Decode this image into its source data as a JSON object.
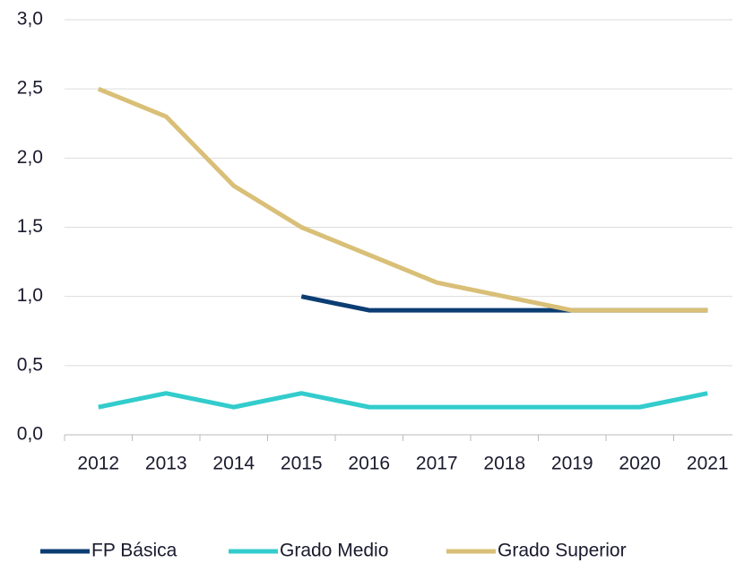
{
  "chart_data": {
    "type": "line",
    "categories": [
      "2012",
      "2013",
      "2014",
      "2015",
      "2016",
      "2017",
      "2018",
      "2019",
      "2020",
      "2021"
    ],
    "series": [
      {
        "name": "FP Básica",
        "color": "#0b3d73",
        "values": [
          null,
          null,
          null,
          1.0,
          0.9,
          0.9,
          0.9,
          0.9,
          0.9,
          0.9
        ]
      },
      {
        "name": "Grado Medio",
        "color": "#33cccc",
        "values": [
          0.2,
          0.3,
          0.2,
          0.3,
          0.2,
          0.2,
          0.2,
          0.2,
          0.2,
          0.3
        ]
      },
      {
        "name": "Grado Superior",
        "color": "#d9bf77",
        "values": [
          2.5,
          2.3,
          1.8,
          1.5,
          1.3,
          1.1,
          1.0,
          0.9,
          0.9,
          0.9
        ]
      }
    ],
    "ylim": [
      0,
      3
    ],
    "yticks": [
      {
        "value": 0,
        "label": "0,0"
      },
      {
        "value": 0.5,
        "label": "0,5"
      },
      {
        "value": 1,
        "label": "1,0"
      },
      {
        "value": 1.5,
        "label": "1,5"
      },
      {
        "value": 2,
        "label": "2,0"
      },
      {
        "value": 2.5,
        "label": "2,5"
      },
      {
        "value": 3,
        "label": "3,0"
      }
    ],
    "grid": true,
    "legend": "bottom"
  }
}
